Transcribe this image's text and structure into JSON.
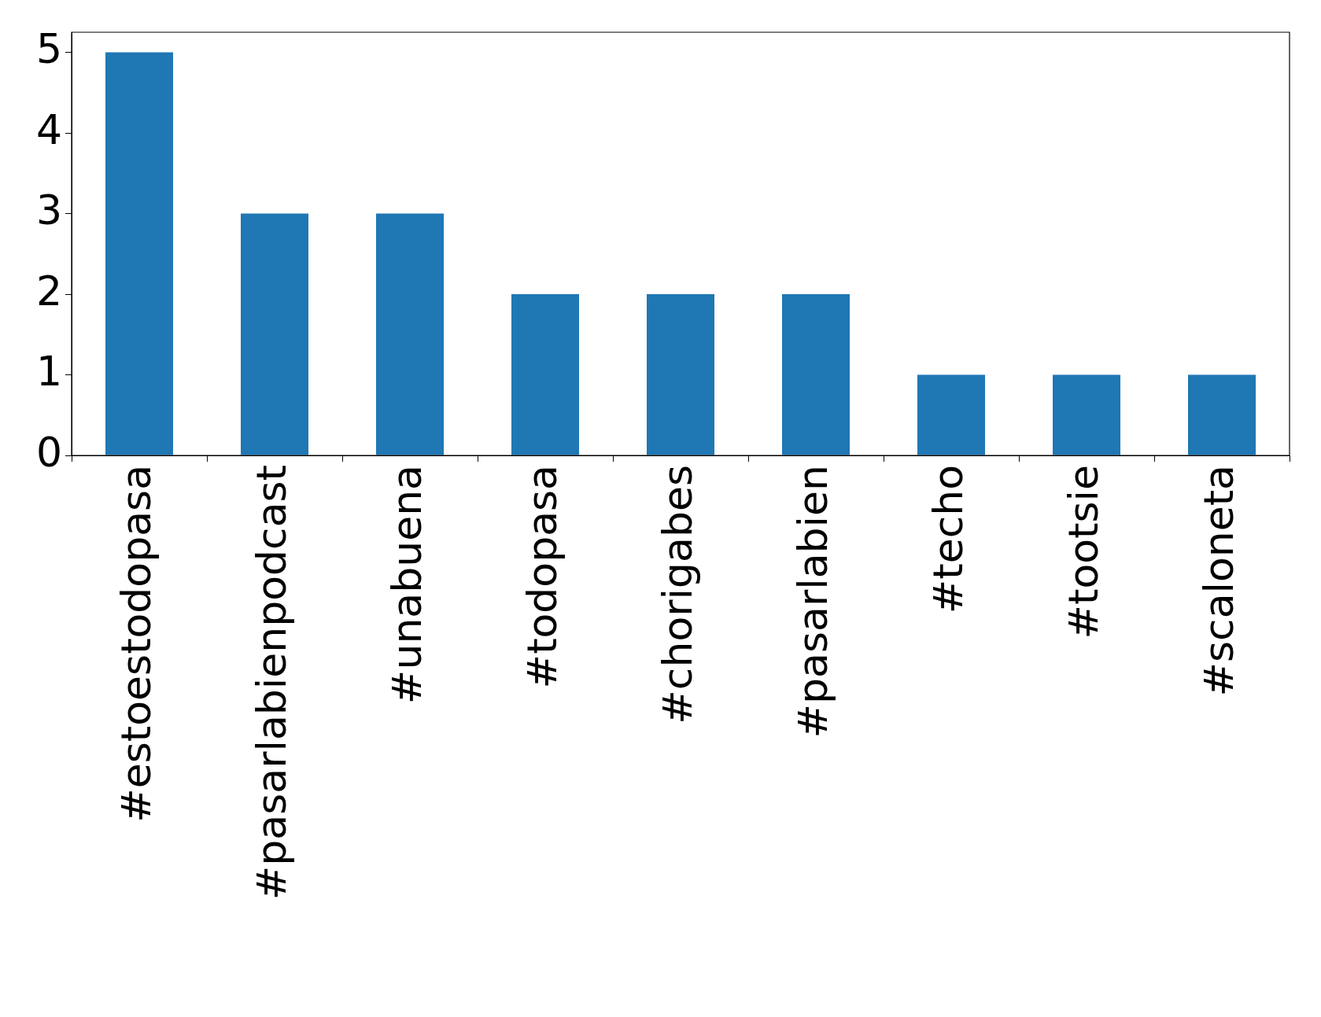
{
  "chart_data": {
    "type": "bar",
    "categories": [
      "#estoestodopasa",
      "#pasarlabienpodcast",
      "#unabuena",
      "#todopasa",
      "#chorigabes",
      "#pasarlabien",
      "#techo",
      "#tootsie",
      "#scaloneta"
    ],
    "values": [
      5,
      3,
      3,
      2,
      2,
      2,
      1,
      1,
      1
    ],
    "color": "#1f77b4",
    "ylim": [
      0,
      5.25
    ],
    "yticks": [
      0,
      1,
      2,
      3,
      4,
      5
    ],
    "grid": false,
    "legend": false
  }
}
